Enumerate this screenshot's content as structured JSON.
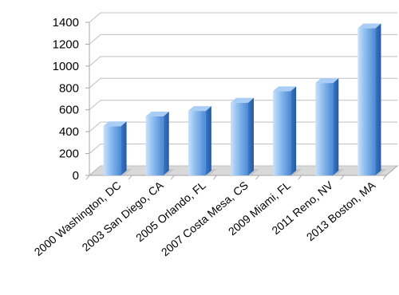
{
  "chart_data": {
    "type": "bar",
    "style": "3d-column",
    "categories": [
      "2000 Washington, DC",
      "2003 San Diego, CA",
      "2005 Orlando, FL",
      "2007 Costa Mesa, CS",
      "2009 Miami, FL",
      "2011 Reno, NV",
      "2013 Boston, MA"
    ],
    "values": [
      450,
      540,
      590,
      665,
      770,
      845,
      1345
    ],
    "title": "",
    "xlabel": "",
    "ylabel": "",
    "ylim": [
      0,
      1400
    ],
    "yticks": [
      0,
      200,
      400,
      600,
      800,
      1000,
      1200,
      1400
    ],
    "grid": true,
    "legend": "none",
    "colors": {
      "bar_light": "#c9e2fb",
      "bar_mid": "#7fb2ea",
      "bar_dark": "#3f7fcd",
      "bar_top": "#a9cdf5",
      "bar_side": "#2f6ab8",
      "grid": "#bfbfbf",
      "wall": "#ffffff",
      "floor": "#d9d9d9"
    }
  }
}
